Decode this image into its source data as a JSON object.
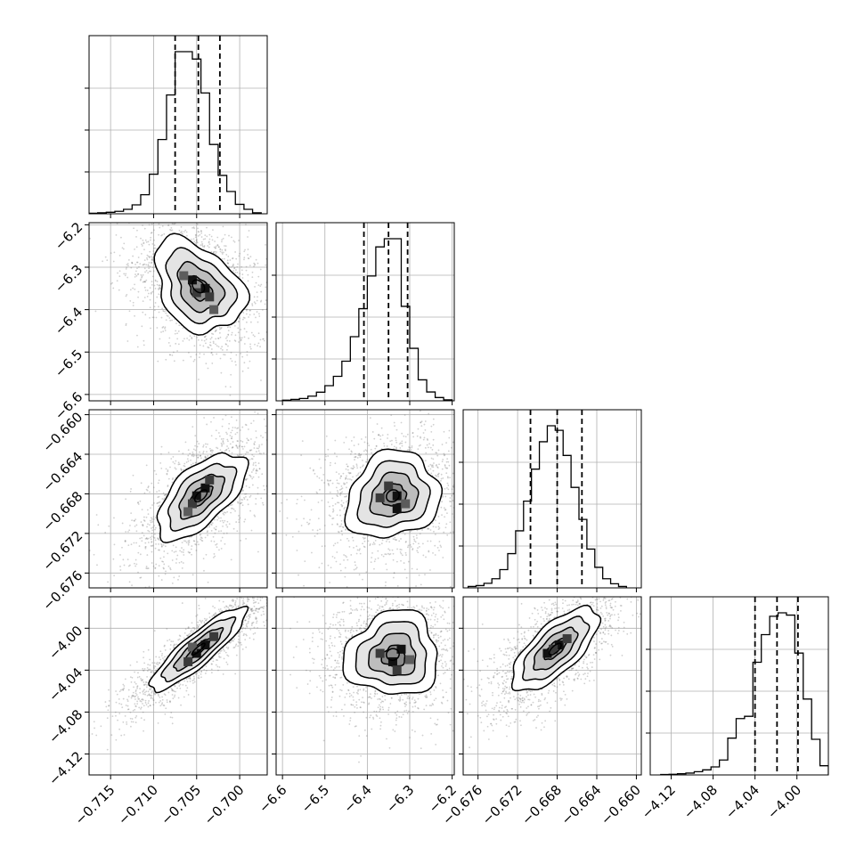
{
  "figure": {
    "type": "corner-plot",
    "parameters": 4,
    "colors": {
      "hist": "#000000",
      "grid": "#b0b0b0",
      "points": "#777777",
      "contour": "#000000"
    }
  },
  "chart_data": {
    "type": "corner",
    "grid": true,
    "dim_ranges": [
      [
        -0.7175,
        -0.6968
      ],
      [
        -6.615,
        -6.195
      ],
      [
        -0.6775,
        -0.6595
      ],
      [
        -4.14,
        -3.97
      ]
    ],
    "tick_labels": [
      [
        "−0.715",
        "−0.710",
        "−0.705",
        "−0.700"
      ],
      [
        "−6.6",
        "−6.5",
        "−6.4",
        "−6.3",
        "−6.2"
      ],
      [
        "−0.676",
        "−0.672",
        "−0.668",
        "−0.664",
        "−0.660"
      ],
      [
        "−4.12",
        "−4.08",
        "−4.04",
        "−4.00"
      ]
    ],
    "tick_values": [
      [
        -0.715,
        -0.71,
        -0.705,
        -0.7
      ],
      [
        -6.6,
        -6.5,
        -6.4,
        -6.3,
        -6.2
      ],
      [
        -0.676,
        -0.672,
        -0.668,
        -0.664,
        -0.66
      ],
      [
        -4.12,
        -4.08,
        -4.04,
        -4.0
      ]
    ],
    "histograms": [
      {
        "bins": [
          -0.7175,
          -0.7165,
          -0.7155,
          -0.7145,
          -0.7135,
          -0.7125,
          -0.7115,
          -0.7105,
          -0.7095,
          -0.7085,
          -0.7075,
          -0.7065,
          -0.7055,
          -0.7045,
          -0.7035,
          -0.7025,
          -0.7015,
          -0.7005,
          -0.6995,
          -0.6985,
          -0.6975
        ],
        "counts": [
          2,
          4,
          6,
          10,
          18,
          36,
          77,
          160,
          300,
          480,
          655,
          655,
          625,
          488,
          280,
          155,
          90,
          38,
          18,
          4
        ],
        "quantiles": [
          -0.7075,
          -0.7048,
          -0.7023
        ]
      },
      {
        "bins": [
          -6.6,
          -6.58,
          -6.56,
          -6.54,
          -6.52,
          -6.5,
          -6.48,
          -6.46,
          -6.44,
          -6.42,
          -6.4,
          -6.38,
          -6.36,
          -6.34,
          -6.32,
          -6.3,
          -6.28,
          -6.26,
          -6.24,
          -6.22,
          -6.2
        ],
        "counts": [
          3,
          6,
          10,
          20,
          37,
          65,
          105,
          170,
          275,
          395,
          535,
          660,
          695,
          695,
          405,
          225,
          90,
          38,
          14,
          4
        ],
        "quantiles": [
          -6.408,
          -6.35,
          -6.305
        ]
      },
      {
        "bins": [
          -0.677,
          -0.6762,
          -0.6754,
          -0.6746,
          -0.6738,
          -0.673,
          -0.6722,
          -0.6714,
          -0.6706,
          -0.6698,
          -0.669,
          -0.6682,
          -0.6674,
          -0.6666,
          -0.6658,
          -0.665,
          -0.6642,
          -0.6634,
          -0.6626,
          -0.6618,
          -0.661
        ],
        "counts": [
          6,
          10,
          20,
          40,
          80,
          150,
          250,
          380,
          520,
          640,
          710,
          690,
          580,
          440,
          300,
          170,
          90,
          40,
          18,
          6
        ],
        "quantiles": [
          -0.6707,
          -0.668,
          -0.6655
        ]
      },
      {
        "bins": [
          -4.13,
          -4.122,
          -4.114,
          -4.106,
          -4.098,
          -4.09,
          -4.082,
          -4.074,
          -4.066,
          -4.058,
          -4.05,
          -4.042,
          -4.034,
          -4.026,
          -4.018,
          -4.01,
          -4.002,
          -3.994,
          -3.986,
          -3.978,
          -3.97
        ],
        "counts": [
          2,
          3,
          5,
          8,
          14,
          22,
          35,
          65,
          160,
          245,
          255,
          490,
          610,
          690,
          705,
          695,
          530,
          330,
          155,
          40
        ],
        "quantiles": [
          -4.04,
          -4.019,
          -3.999
        ]
      }
    ],
    "pairs": [
      {
        "row": 1,
        "col": 0,
        "mean": [
          -0.7048,
          -6.345
        ],
        "std": [
          0.0026,
          0.055
        ],
        "rho": -0.35,
        "contour_levels": [
          0.5,
          1.0,
          1.5,
          2.0
        ],
        "contour_offset": [
          0.15,
          -0.25
        ],
        "contour_skew": 0.12,
        "peak_cells": [
          [
            -0.7055,
            -6.33
          ],
          [
            -0.704,
            -6.35
          ],
          [
            -0.7035,
            -6.37
          ],
          [
            -0.705,
            -6.36
          ],
          [
            -0.7065,
            -6.32
          ],
          [
            -0.703,
            -6.4
          ]
        ]
      },
      {
        "row": 2,
        "col": 0,
        "mean": [
          -0.7045,
          -0.6682
        ],
        "std": [
          0.0026,
          0.0022
        ],
        "rho": 0.62,
        "contour_levels": [
          0.5,
          1.0,
          1.5,
          2.0
        ],
        "contour_offset": [
          0.0,
          0.0
        ],
        "contour_skew": 0.05,
        "peak_cells": [
          [
            -0.705,
            -0.6682
          ],
          [
            -0.704,
            -0.6674
          ],
          [
            -0.7055,
            -0.669
          ],
          [
            -0.7035,
            -0.6666
          ],
          [
            -0.706,
            -0.6698
          ]
        ]
      },
      {
        "row": 2,
        "col": 1,
        "mean": [
          -6.34,
          -0.6682
        ],
        "std": [
          0.055,
          0.0022
        ],
        "rho": 0.15,
        "contour_levels": [
          0.5,
          1.0,
          1.5,
          2.0
        ],
        "contour_offset": [
          0.15,
          0.05
        ],
        "contour_skew": 0.1,
        "peak_cells": [
          [
            -6.33,
            -0.6682
          ],
          [
            -6.33,
            -0.6695
          ],
          [
            -6.35,
            -0.6672
          ],
          [
            -6.37,
            -0.6684
          ],
          [
            -6.31,
            -0.669
          ]
        ]
      },
      {
        "row": 3,
        "col": 0,
        "mean": [
          -0.7048,
          -4.02
        ],
        "std": [
          0.0028,
          0.02
        ],
        "rho": 0.88,
        "contour_levels": [
          0.5,
          1.0,
          1.5,
          2.0
        ],
        "contour_offset": [
          0.0,
          0.0
        ],
        "contour_skew": 0.0,
        "peak_cells": [
          [
            -0.705,
            -4.024
          ],
          [
            -0.704,
            -4.016
          ],
          [
            -0.706,
            -4.032
          ],
          [
            -0.703,
            -4.008
          ],
          [
            -0.7055,
            -4.018
          ]
        ]
      },
      {
        "row": 3,
        "col": 1,
        "mean": [
          -6.34,
          -4.025
        ],
        "std": [
          0.055,
          0.02
        ],
        "rho": 0.05,
        "contour_levels": [
          0.5,
          1.0,
          1.5,
          2.0
        ],
        "contour_offset": [
          0.1,
          -0.2
        ],
        "contour_skew": 0.12,
        "peak_cells": [
          [
            -6.34,
            -4.032
          ],
          [
            -6.32,
            -4.02
          ],
          [
            -6.33,
            -4.04
          ],
          [
            -6.37,
            -4.024
          ],
          [
            -6.3,
            -4.03
          ]
        ]
      },
      {
        "row": 3,
        "col": 2,
        "mean": [
          -0.6682,
          -4.02
        ],
        "std": [
          0.0022,
          0.02
        ],
        "rho": 0.7,
        "contour_levels": [
          0.5,
          1.0,
          1.5,
          2.0
        ],
        "contour_offset": [
          0.0,
          0.0
        ],
        "contour_skew": 0.0,
        "peak_cells": [
          [
            -0.6678,
            -4.016
          ],
          [
            -0.669,
            -4.024
          ],
          [
            -0.667,
            -4.01
          ],
          [
            -0.6684,
            -4.02
          ]
        ]
      }
    ]
  }
}
